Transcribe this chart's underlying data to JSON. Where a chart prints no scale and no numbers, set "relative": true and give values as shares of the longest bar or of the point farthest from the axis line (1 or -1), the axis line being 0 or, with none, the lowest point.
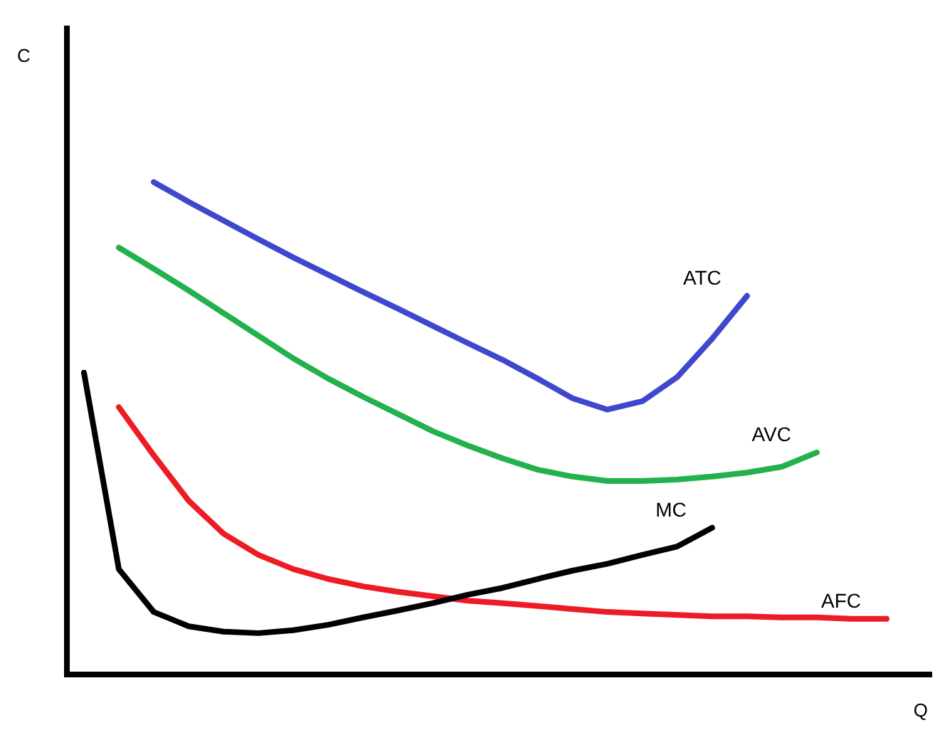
{
  "chart_data": {
    "type": "line",
    "relative": true,
    "xlabel": "Q",
    "annotations": [
      "C"
    ],
    "legend": false,
    "line_style": "solid",
    "categories": [
      null,
      null,
      null,
      null,
      null,
      null,
      null,
      null,
      null,
      null,
      null,
      null,
      null,
      null,
      null,
      null,
      null,
      null,
      null,
      null,
      null,
      null,
      null,
      null
    ],
    "series": [
      {
        "name": "ATC",
        "color": "#3f48cc",
        "values": [
          null,
          null,
          1.0,
          0.96,
          0.922,
          0.884,
          0.847,
          0.812,
          0.777,
          0.743,
          0.708,
          0.673,
          0.639,
          0.601,
          0.561,
          0.538,
          0.555,
          0.604,
          0.682,
          0.769,
          null,
          null,
          null,
          null
        ]
      },
      {
        "name": "AVC",
        "color": "#22b14c",
        "values": [
          null,
          0.867,
          0.824,
          0.78,
          0.734,
          0.688,
          0.642,
          0.601,
          0.564,
          0.529,
          0.494,
          0.465,
          0.439,
          0.416,
          0.402,
          0.393,
          0.393,
          0.396,
          0.402,
          0.41,
          0.422,
          0.451,
          null,
          null
        ]
      },
      {
        "name": "MC",
        "color": "#000000",
        "values": [
          0.613,
          0.214,
          0.127,
          0.098,
          0.087,
          0.084,
          0.09,
          0.101,
          0.116,
          0.13,
          0.145,
          0.162,
          0.176,
          0.194,
          0.211,
          0.225,
          0.243,
          0.26,
          0.298,
          null,
          null,
          null,
          null,
          null
        ]
      },
      {
        "name": "AFC",
        "color": "#ed1c24",
        "values": [
          null,
          0.543,
          0.445,
          0.353,
          0.286,
          0.243,
          0.214,
          0.194,
          0.179,
          0.168,
          0.159,
          0.15,
          0.145,
          0.139,
          0.133,
          0.127,
          0.124,
          0.121,
          0.118,
          0.118,
          0.116,
          0.116,
          0.113,
          0.113
        ]
      }
    ]
  }
}
